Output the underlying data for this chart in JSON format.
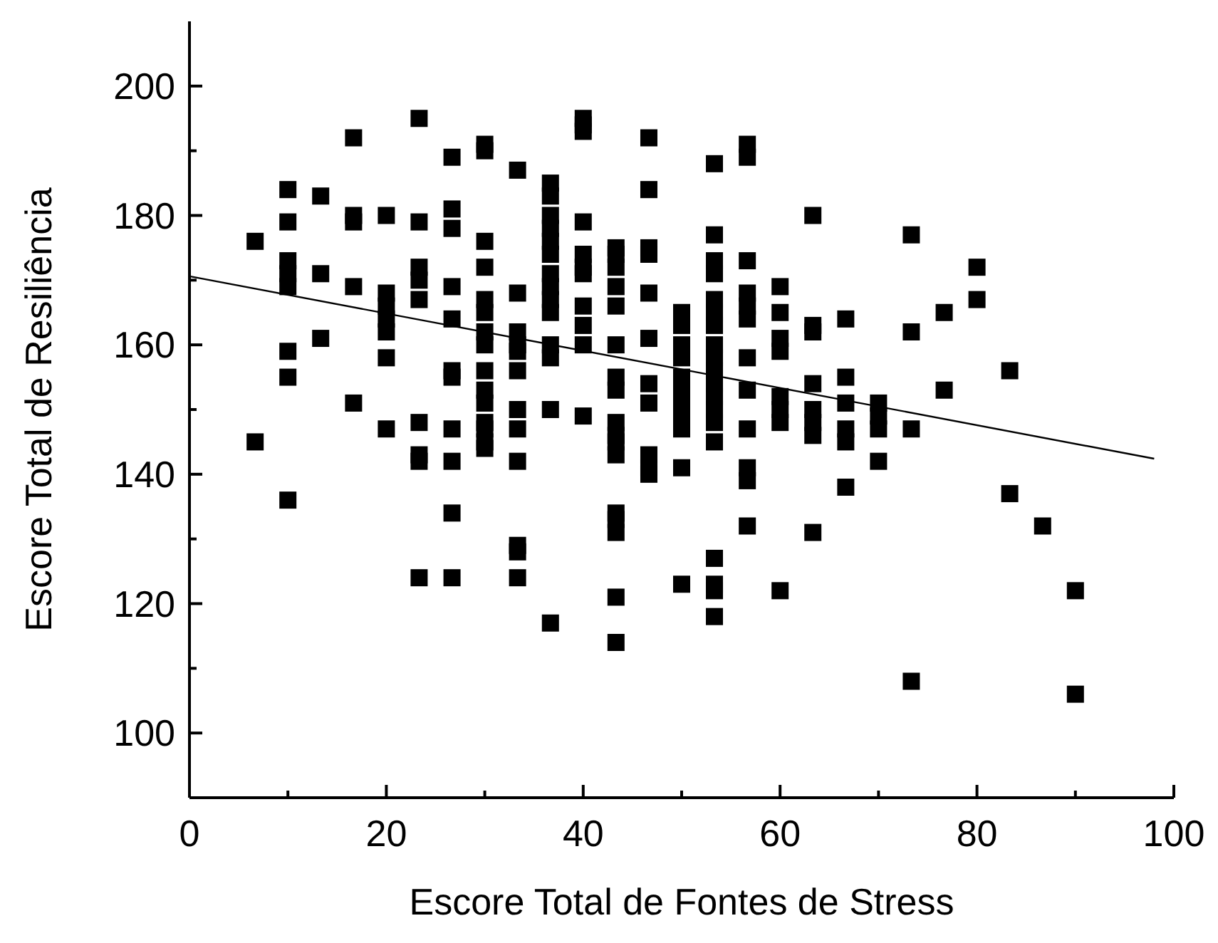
{
  "chart_data": {
    "type": "scatter",
    "xlabel": "Escore Total de Fontes de Stress",
    "ylabel": "Escore Total de Resiliência",
    "xlim": [
      0,
      100
    ],
    "ylim": [
      90,
      210
    ],
    "xticks": [
      0,
      {
        "value": 10,
        "label": null
      },
      20,
      {
        "value": 30,
        "label": null
      },
      40,
      {
        "value": 50,
        "label": null
      },
      60,
      {
        "value": 70,
        "label": null
      },
      80,
      {
        "value": 90,
        "label": null
      },
      100
    ],
    "yticks": [
      {
        "value": 90,
        "label": null
      },
      100,
      {
        "value": 110,
        "label": null
      },
      120,
      {
        "value": 130,
        "label": null
      },
      140,
      {
        "value": 150,
        "label": null
      },
      160,
      {
        "value": 170,
        "label": null
      },
      180,
      {
        "value": 190,
        "label": null
      },
      200
    ],
    "grid": false,
    "series": [
      {
        "color": "#000000",
        "marker": "square",
        "x": [
          6.67,
          6.67,
          10,
          10,
          10,
          10,
          10,
          10,
          10,
          10,
          13.33,
          13.33,
          13.33,
          16.67,
          16.67,
          16.67,
          16.67,
          16.67,
          20,
          20,
          20,
          20,
          20,
          20,
          20,
          23.33,
          23.33,
          23.33,
          23.33,
          23.33,
          23.33,
          23.33,
          23.33,
          23.33,
          26.67,
          26.67,
          26.67,
          26.67,
          26.67,
          26.67,
          26.67,
          26.67,
          26.67,
          26.67,
          26.67,
          30,
          30,
          30,
          30,
          30,
          30,
          30,
          30,
          30,
          30,
          30,
          30,
          30,
          30,
          30,
          33.33,
          33.33,
          33.33,
          33.33,
          33.33,
          33.33,
          33.33,
          33.33,
          33.33,
          33.33,
          33.33,
          33.33,
          36.67,
          36.67,
          36.67,
          36.67,
          36.67,
          36.67,
          36.67,
          36.67,
          36.67,
          36.67,
          36.67,
          36.67,
          36.67,
          36.67,
          40,
          40,
          40,
          40,
          40,
          40,
          40,
          40,
          40,
          40,
          40,
          43.33,
          43.33,
          43.33,
          43.33,
          43.33,
          43.33,
          43.33,
          43.33,
          43.33,
          43.33,
          43.33,
          43.33,
          43.33,
          43.33,
          43.33,
          43.33,
          43.33,
          46.67,
          46.67,
          46.67,
          46.67,
          46.67,
          46.67,
          46.67,
          46.67,
          46.67,
          46.67,
          46.67,
          50,
          50,
          50,
          50,
          50,
          50,
          50,
          50,
          50,
          50,
          50,
          53.33,
          53.33,
          53.33,
          53.33,
          53.33,
          53.33,
          53.33,
          53.33,
          53.33,
          53.33,
          53.33,
          53.33,
          53.33,
          53.33,
          53.33,
          53.33,
          53.33,
          53.33,
          53.33,
          56.67,
          56.67,
          56.67,
          56.67,
          56.67,
          56.67,
          56.67,
          56.67,
          56.67,
          56.67,
          56.67,
          56.67,
          60,
          60,
          60,
          60,
          60,
          60,
          60,
          60,
          63.33,
          63.33,
          63.33,
          63.33,
          63.33,
          63.33,
          63.33,
          63.33,
          66.67,
          66.67,
          66.67,
          66.67,
          66.67,
          66.67,
          70,
          70,
          70,
          70,
          73.33,
          73.33,
          73.33,
          73.33,
          76.67,
          76.67,
          80,
          80,
          83.33,
          83.33,
          86.67,
          90,
          90
        ],
        "values": [
          176,
          145,
          184,
          179,
          173,
          171,
          169,
          159,
          155,
          136,
          183,
          171,
          161,
          192,
          180,
          179,
          169,
          151,
          180,
          168,
          166,
          164,
          162,
          158,
          147,
          195,
          179,
          172,
          170,
          167,
          148,
          143,
          142,
          124,
          189,
          181,
          178,
          169,
          164,
          156,
          155,
          147,
          142,
          134,
          124,
          191,
          190,
          176,
          172,
          167,
          165,
          162,
          160,
          156,
          153,
          151,
          148,
          147,
          145,
          144,
          187,
          168,
          162,
          160,
          159,
          156,
          150,
          147,
          142,
          129,
          128,
          124,
          185,
          183,
          180,
          178,
          176,
          174,
          171,
          169,
          167,
          165,
          160,
          158,
          150,
          117,
          195,
          194,
          193,
          179,
          174,
          172,
          171,
          166,
          163,
          160,
          149,
          175,
          174,
          172,
          169,
          166,
          160,
          155,
          153,
          148,
          146,
          145,
          143,
          134,
          133,
          131,
          121,
          114,
          192,
          184,
          175,
          174,
          168,
          161,
          154,
          151,
          143,
          141,
          140,
          165,
          163,
          160,
          158,
          155,
          153,
          151,
          149,
          147,
          141,
          123,
          188,
          177,
          173,
          171,
          167,
          165,
          163,
          160,
          158,
          156,
          154,
          152,
          150,
          148,
          145,
          127,
          123,
          122,
          118,
          191,
          189,
          173,
          168,
          166,
          164,
          158,
          153,
          147,
          141,
          139,
          132,
          169,
          165,
          161,
          159,
          152,
          150,
          148,
          122,
          180,
          163,
          162,
          154,
          150,
          148,
          146,
          131,
          164,
          155,
          151,
          147,
          145,
          138,
          151,
          149,
          147,
          142,
          177,
          162,
          147,
          108,
          165,
          153,
          172,
          167,
          156,
          137,
          132,
          122,
          106
        ]
      },
      {
        "type": "line",
        "color": "#000000",
        "marker": "none",
        "line_style": "solid",
        "x": [
          0,
          98
        ],
        "values": [
          170.6,
          142.4
        ]
      }
    ]
  }
}
